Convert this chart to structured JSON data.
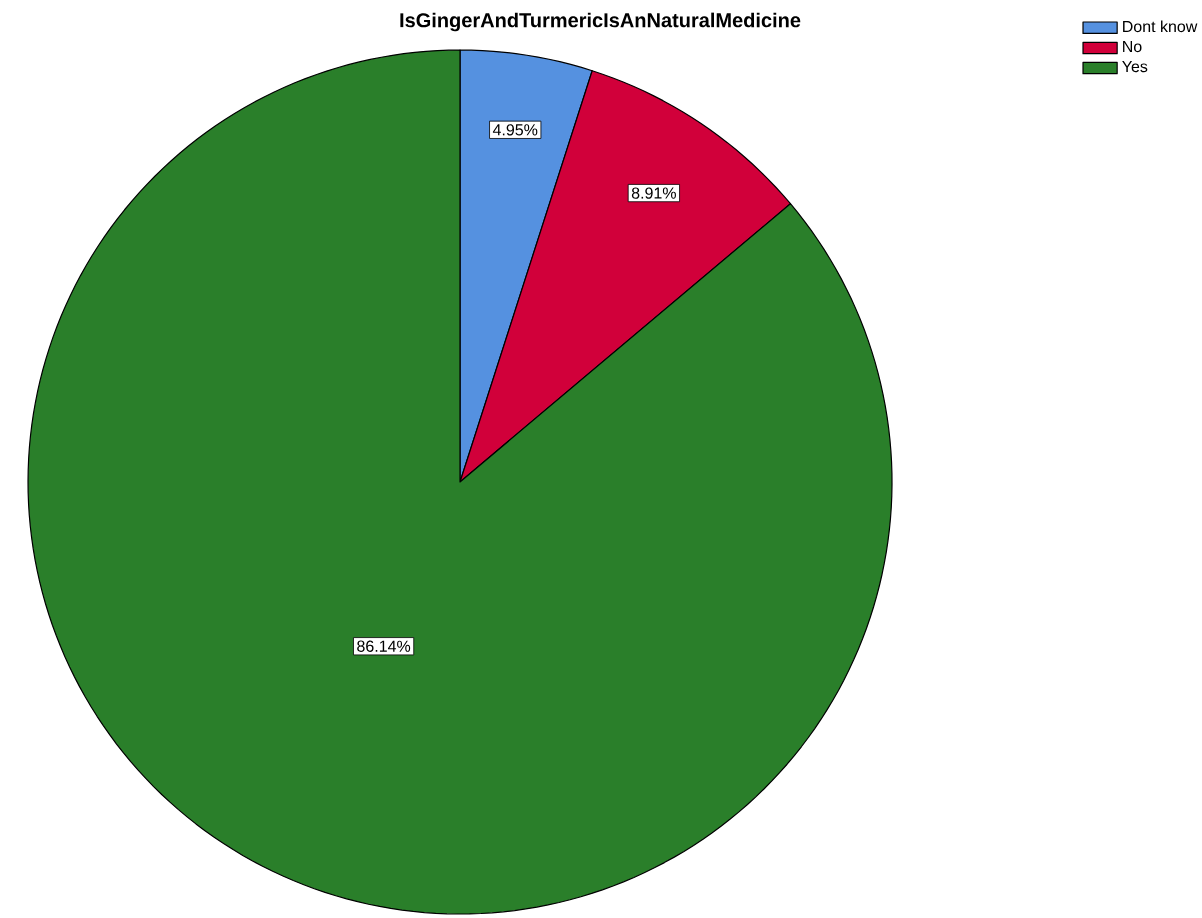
{
  "chart_data": {
    "type": "pie",
    "title": "IsGingerAndTurmericIsAnNaturalMedicine",
    "categories": [
      "Dont know",
      "No",
      "Yes"
    ],
    "values": [
      4.95,
      8.91,
      86.14
    ],
    "colors": [
      "#5591e0",
      "#d1003a",
      "#2a7f2a"
    ],
    "value_labels": [
      "4.95%",
      "8.91%",
      "86.14%"
    ],
    "legend": "top right"
  }
}
